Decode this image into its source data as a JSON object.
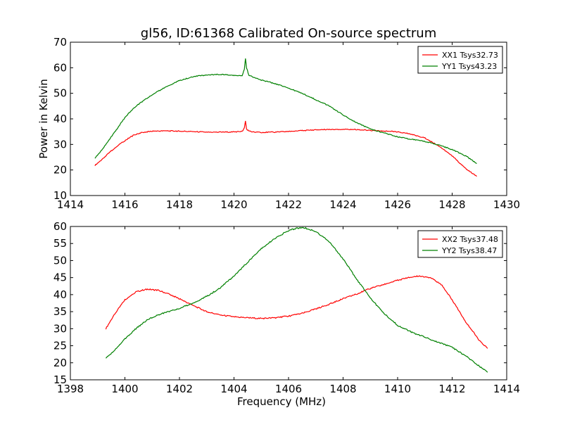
{
  "title": "gl56, ID:61368 Calibrated On-source spectrum",
  "chart_data": [
    {
      "type": "line",
      "ylabel": "Power in Kelvin",
      "xlabel": "",
      "xlim": [
        1414,
        1430
      ],
      "ylim": [
        10,
        70
      ],
      "xticks": [
        "1414",
        "1416",
        "1418",
        "1420",
        "1422",
        "1424",
        "1426",
        "1428",
        "1430"
      ],
      "yticks": [
        "10",
        "20",
        "30",
        "40",
        "50",
        "60",
        "70"
      ],
      "legend_position": "top-right",
      "series": [
        {
          "name": "XX1 Tsys32.73",
          "color": "#ff0000",
          "x": [
            1414.9,
            1415.2,
            1415.5,
            1415.8,
            1416.0,
            1416.3,
            1416.6,
            1417.0,
            1417.5,
            1418.0,
            1418.5,
            1419.0,
            1419.5,
            1420.0,
            1420.3,
            1420.38,
            1420.42,
            1420.46,
            1420.55,
            1420.7,
            1421.0,
            1421.5,
            1422.0,
            1422.5,
            1423.0,
            1423.5,
            1424.0,
            1424.5,
            1425.0,
            1425.5,
            1426.0,
            1426.5,
            1427.0,
            1427.5,
            1428.0,
            1428.5,
            1428.9
          ],
          "y": [
            21.8,
            24.5,
            27.5,
            30.0,
            31.5,
            33.5,
            34.6,
            35.2,
            35.3,
            35.2,
            35.0,
            34.8,
            34.8,
            34.9,
            35.1,
            36.5,
            39.0,
            36.0,
            35.2,
            34.8,
            34.7,
            34.8,
            35.1,
            35.4,
            35.7,
            35.9,
            35.9,
            35.8,
            35.5,
            35.3,
            34.9,
            34.0,
            32.5,
            29.5,
            25.5,
            20.5,
            17.5
          ]
        },
        {
          "name": "YY1 Tsys43.23",
          "color": "#008000",
          "x": [
            1414.9,
            1415.2,
            1415.5,
            1415.8,
            1416.0,
            1416.3,
            1416.6,
            1417.0,
            1417.5,
            1418.0,
            1418.5,
            1419.0,
            1419.5,
            1420.0,
            1420.3,
            1420.38,
            1420.42,
            1420.46,
            1420.55,
            1420.8,
            1421.0,
            1421.5,
            1422.0,
            1422.5,
            1423.0,
            1423.5,
            1424.0,
            1424.5,
            1425.0,
            1425.5,
            1426.0,
            1426.5,
            1427.0,
            1427.5,
            1428.0,
            1428.5,
            1428.9
          ],
          "y": [
            24.5,
            28.5,
            33.0,
            37.5,
            40.5,
            44.0,
            46.5,
            49.5,
            52.5,
            55.0,
            56.5,
            57.2,
            57.4,
            57.0,
            57.0,
            59.5,
            63.5,
            60.0,
            57.0,
            56.0,
            55.2,
            53.8,
            52.0,
            50.0,
            47.5,
            45.0,
            41.5,
            38.5,
            36.0,
            34.5,
            33.0,
            32.0,
            31.2,
            29.8,
            28.0,
            25.5,
            22.5
          ]
        }
      ]
    },
    {
      "type": "line",
      "ylabel": "",
      "xlabel": "Frequency (MHz)",
      "xlim": [
        1398,
        1414
      ],
      "ylim": [
        15,
        60
      ],
      "xticks": [
        "1398",
        "1400",
        "1402",
        "1404",
        "1406",
        "1408",
        "1410",
        "1412",
        "1414"
      ],
      "yticks": [
        "15",
        "20",
        "25",
        "30",
        "35",
        "40",
        "45",
        "50",
        "55",
        "60"
      ],
      "legend_position": "top-right",
      "series": [
        {
          "name": "XX2 Tsys37.48",
          "color": "#ff0000",
          "x": [
            1399.3,
            1399.6,
            1400.0,
            1400.4,
            1400.8,
            1401.2,
            1401.6,
            1402.0,
            1402.5,
            1403.0,
            1403.5,
            1404.0,
            1404.5,
            1405.0,
            1405.5,
            1406.0,
            1406.5,
            1407.0,
            1407.5,
            1408.0,
            1408.5,
            1409.0,
            1409.5,
            1410.0,
            1410.4,
            1410.8,
            1411.2,
            1411.6,
            1412.0,
            1412.5,
            1413.0,
            1413.3
          ],
          "y": [
            30.0,
            34.0,
            38.5,
            40.8,
            41.6,
            41.3,
            40.2,
            38.8,
            36.8,
            35.0,
            34.0,
            33.5,
            33.2,
            33.0,
            33.2,
            33.7,
            34.5,
            35.8,
            37.2,
            38.8,
            40.2,
            41.8,
            43.0,
            44.2,
            45.0,
            45.5,
            45.0,
            43.0,
            38.5,
            32.0,
            26.5,
            24.2
          ]
        },
        {
          "name": "YY2 Tsys38.47",
          "color": "#008000",
          "x": [
            1399.3,
            1399.6,
            1400.0,
            1400.4,
            1400.8,
            1401.2,
            1401.6,
            1402.0,
            1402.5,
            1403.0,
            1403.5,
            1404.0,
            1404.5,
            1405.0,
            1405.5,
            1406.0,
            1406.3,
            1406.6,
            1407.0,
            1407.5,
            1408.0,
            1408.5,
            1409.0,
            1409.5,
            1410.0,
            1410.5,
            1411.0,
            1411.5,
            1412.0,
            1412.5,
            1413.0,
            1413.3
          ],
          "y": [
            21.3,
            23.5,
            27.0,
            30.0,
            32.5,
            34.0,
            35.0,
            36.0,
            37.5,
            39.5,
            42.0,
            45.5,
            49.5,
            53.5,
            56.5,
            58.8,
            59.5,
            59.6,
            58.5,
            55.5,
            50.5,
            44.5,
            39.0,
            34.5,
            31.0,
            29.0,
            27.5,
            26.0,
            24.5,
            22.0,
            19.0,
            17.2
          ]
        }
      ]
    }
  ]
}
